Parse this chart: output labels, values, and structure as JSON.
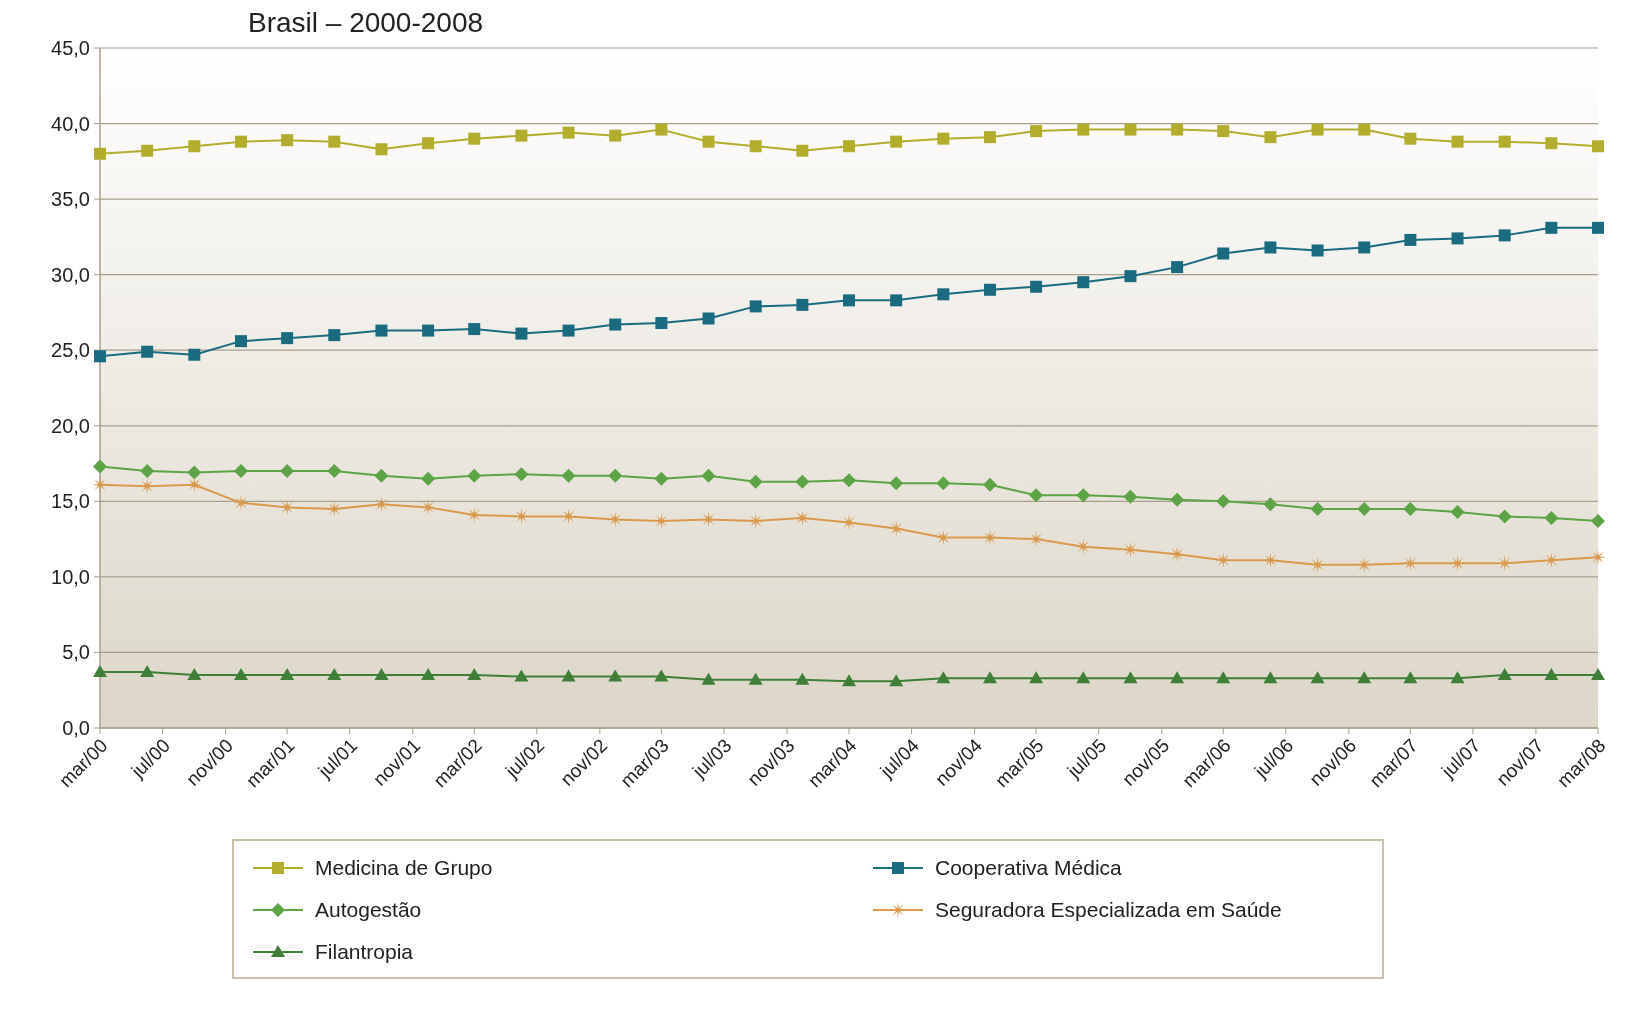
{
  "chart_data": {
    "type": "line",
    "title": "Brasil – 2000-2008",
    "x": [
      "2000-03",
      "2000-06",
      "2000-09",
      "2000-12",
      "2001-03",
      "2001-06",
      "2001-09",
      "2001-12",
      "2002-03",
      "2002-06",
      "2002-09",
      "2002-12",
      "2003-03",
      "2003-06",
      "2003-09",
      "2003-12",
      "2004-03",
      "2004-06",
      "2004-09",
      "2004-12",
      "2005-03",
      "2005-06",
      "2005-09",
      "2005-12",
      "2006-03",
      "2006-06",
      "2006-09",
      "2006-12",
      "2007-03",
      "2007-06",
      "2007-09",
      "2007-12",
      "2008-03"
    ],
    "series": [
      {
        "name": "Medicina de Grupo",
        "color": "#b3ad2e",
        "marker": "square",
        "values": [
          38.0,
          38.2,
          38.5,
          38.8,
          38.9,
          38.8,
          38.3,
          38.7,
          39.0,
          39.2,
          39.4,
          39.2,
          39.6,
          38.8,
          38.5,
          38.2,
          38.5,
          38.8,
          39.0,
          39.1,
          39.5,
          39.6,
          39.6,
          39.6,
          39.5,
          39.1,
          39.6,
          39.6,
          39.0,
          38.8,
          38.8,
          38.7,
          38.5
        ]
      },
      {
        "name": "Cooperativa Médica",
        "color": "#1a6b80",
        "marker": "square",
        "values": [
          24.6,
          24.9,
          24.7,
          25.6,
          25.8,
          26.0,
          26.3,
          26.3,
          26.4,
          26.1,
          26.3,
          26.7,
          26.8,
          27.1,
          27.9,
          28.0,
          28.3,
          28.3,
          28.7,
          29.0,
          29.2,
          29.5,
          29.9,
          30.5,
          31.4,
          31.8,
          31.6,
          31.8,
          32.3,
          32.4,
          32.6,
          33.1,
          33.1
        ]
      },
      {
        "name": "Autogestão",
        "color": "#5da447",
        "marker": "diamond",
        "values": [
          17.3,
          17.0,
          16.9,
          17.0,
          17.0,
          17.0,
          16.7,
          16.5,
          16.7,
          16.8,
          16.7,
          16.7,
          16.5,
          16.7,
          16.3,
          16.3,
          16.4,
          16.2,
          16.2,
          16.1,
          15.4,
          15.4,
          15.3,
          15.1,
          15.0,
          14.8,
          14.5,
          14.5,
          14.5,
          14.3,
          14.0,
          13.9,
          13.7
        ]
      },
      {
        "name": "Seguradora Especializada em Saúde",
        "color": "#d99a4e",
        "marker": "star",
        "values": [
          16.1,
          16.0,
          16.1,
          14.9,
          14.6,
          14.5,
          14.8,
          14.6,
          14.1,
          14.0,
          14.0,
          13.8,
          13.7,
          13.8,
          13.7,
          13.9,
          13.6,
          13.2,
          12.6,
          12.6,
          12.5,
          12.0,
          11.8,
          11.5,
          11.1,
          11.1,
          10.8,
          10.8,
          10.9,
          10.9,
          10.9,
          11.1,
          11.3
        ]
      },
      {
        "name": "Filantropia",
        "color": "#3f7f37",
        "marker": "triangle",
        "values": [
          3.7,
          3.7,
          3.5,
          3.5,
          3.5,
          3.5,
          3.5,
          3.5,
          3.5,
          3.4,
          3.4,
          3.4,
          3.4,
          3.2,
          3.2,
          3.2,
          3.1,
          3.1,
          3.3,
          3.3,
          3.3,
          3.3,
          3.3,
          3.3,
          3.3,
          3.3,
          3.3,
          3.3,
          3.3,
          3.3,
          3.5,
          3.5,
          3.5
        ]
      }
    ],
    "xlim": [
      "2000-03",
      "2008-03"
    ],
    "xticks": [
      {
        "value": "2000-03",
        "label": "mar/00"
      },
      {
        "value": "2000-07",
        "label": "jul/00"
      },
      {
        "value": "2000-11",
        "label": "nov/00"
      },
      {
        "value": "2001-03",
        "label": "mar/01"
      },
      {
        "value": "2001-07",
        "label": "jul/01"
      },
      {
        "value": "2001-11",
        "label": "nov/01"
      },
      {
        "value": "2002-03",
        "label": "mar/02"
      },
      {
        "value": "2002-07",
        "label": "jul/02"
      },
      {
        "value": "2002-11",
        "label": "nov/02"
      },
      {
        "value": "2003-03",
        "label": "mar/03"
      },
      {
        "value": "2003-07",
        "label": "jul/03"
      },
      {
        "value": "2003-11",
        "label": "nov/03"
      },
      {
        "value": "2004-03",
        "label": "mar/04"
      },
      {
        "value": "2004-07",
        "label": "jul/04"
      },
      {
        "value": "2004-11",
        "label": "nov/04"
      },
      {
        "value": "2005-03",
        "label": "mar/05"
      },
      {
        "value": "2005-07",
        "label": "jul/05"
      },
      {
        "value": "2005-11",
        "label": "nov/05"
      },
      {
        "value": "2006-03",
        "label": "mar/06"
      },
      {
        "value": "2006-07",
        "label": "jul/06"
      },
      {
        "value": "2006-11",
        "label": "nov/06"
      },
      {
        "value": "2007-03",
        "label": "mar/07"
      },
      {
        "value": "2007-07",
        "label": "jul/07"
      },
      {
        "value": "2007-11",
        "label": "nov/07"
      },
      {
        "value": "2008-03",
        "label": "mar/08"
      }
    ],
    "ylim": [
      0,
      45
    ],
    "yticks": [
      {
        "value": 0,
        "label": "0,0"
      },
      {
        "value": 5,
        "label": "5,0"
      },
      {
        "value": 10,
        "label": "10,0"
      },
      {
        "value": 15,
        "label": "15,0"
      },
      {
        "value": 20,
        "label": "20,0"
      },
      {
        "value": 25,
        "label": "25,0"
      },
      {
        "value": 30,
        "label": "30,0"
      },
      {
        "value": 35,
        "label": "35,0"
      },
      {
        "value": 40,
        "label": "40,0"
      },
      {
        "value": 45,
        "label": "45,0"
      }
    ],
    "grid": "y",
    "legend": "bottom",
    "line_style": "solid"
  }
}
